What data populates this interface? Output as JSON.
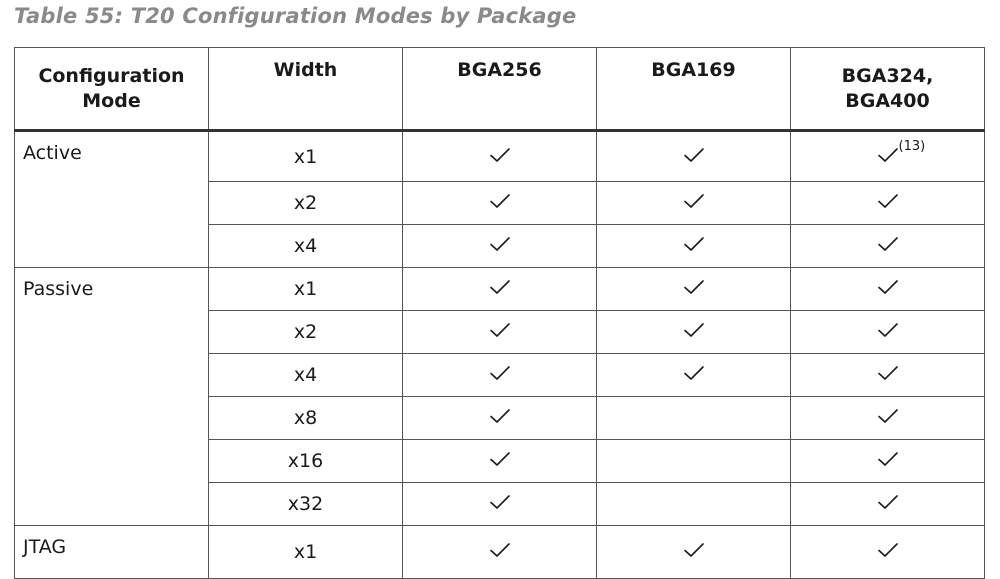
{
  "caption": "Table 55: T20 Configuration Modes by Package",
  "headers": {
    "mode_line1": "Configuration",
    "mode_line2": "Mode",
    "width": "Width",
    "bga256": "BGA256",
    "bga169": "BGA169",
    "bga324_line1": "BGA324,",
    "bga324_line2": "BGA400"
  },
  "groups": [
    {
      "mode": "Active",
      "rows": [
        {
          "width": "x1",
          "bga256": true,
          "bga169": true,
          "bga324": true,
          "note": "(13)"
        },
        {
          "width": "x2",
          "bga256": true,
          "bga169": true,
          "bga324": true
        },
        {
          "width": "x4",
          "bga256": true,
          "bga169": true,
          "bga324": true
        }
      ]
    },
    {
      "mode": "Passive",
      "rows": [
        {
          "width": "x1",
          "bga256": true,
          "bga169": true,
          "bga324": true
        },
        {
          "width": "x2",
          "bga256": true,
          "bga169": true,
          "bga324": true
        },
        {
          "width": "x4",
          "bga256": true,
          "bga169": true,
          "bga324": true
        },
        {
          "width": "x8",
          "bga256": true,
          "bga169": false,
          "bga324": true
        },
        {
          "width": "x16",
          "bga256": true,
          "bga169": false,
          "bga324": true
        },
        {
          "width": "x32",
          "bga256": true,
          "bga169": false,
          "bga324": true
        }
      ]
    },
    {
      "mode": "JTAG",
      "rows": [
        {
          "width": "x1",
          "bga256": true,
          "bga169": true,
          "bga324": true
        }
      ]
    }
  ],
  "icons": {
    "supported": "check-icon"
  }
}
